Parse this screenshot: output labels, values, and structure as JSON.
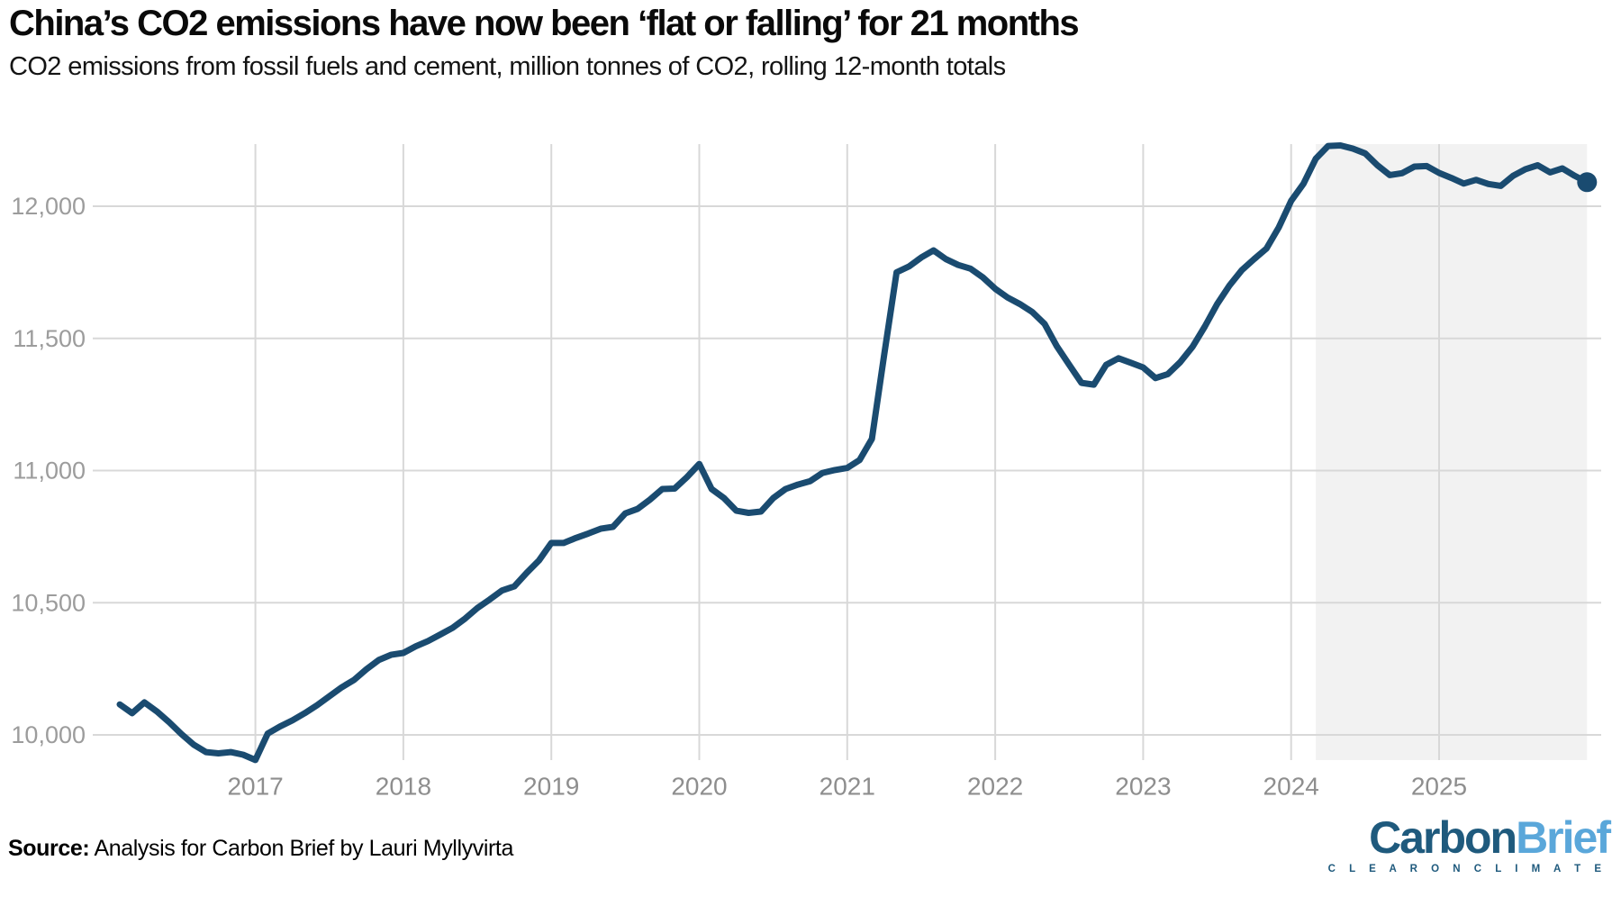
{
  "page": {
    "title": "China’s CO2 emissions have now been ‘flat or falling’ for 21 months",
    "subtitle": "CO2 emissions from fossil fuels and cement, million tonnes of CO2, rolling 12-month totals"
  },
  "source": {
    "label": "Source:",
    "text": " Analysis for Carbon Brief by Lauri Myllyvirta"
  },
  "logo": {
    "carbon": "Carbon",
    "brief": "Brief",
    "tagline": "C L E A R   O N   C L I M A T E",
    "carbon_color": "#1f5a7d",
    "brief_color": "#5aa7da"
  },
  "chart_data": {
    "type": "line",
    "title": "China’s CO2 emissions have now been ‘flat or falling’ for 21 months",
    "ylabel": "million tonnes of CO2, rolling 12-month totals",
    "xlabel": "",
    "grid": true,
    "legend": "none",
    "x_tick_labels": [
      "2017",
      "2018",
      "2019",
      "2020",
      "2021",
      "2022",
      "2023",
      "2024",
      "2025"
    ],
    "y_ticks": [
      10000,
      10500,
      11000,
      11500,
      12000
    ],
    "y_tick_labels": [
      "10,000",
      "10,500",
      "11,000",
      "11,500",
      "12,000"
    ],
    "ylim": [
      9900,
      12235
    ],
    "start_month": "2016-01",
    "end_month": "2025-12",
    "line_color": "#1a4b70",
    "highlight_band": {
      "from": "2024-03",
      "to": "2025-12",
      "color": "#f2f2f2",
      "meaning": "period of flat or falling emissions (21 months)"
    },
    "end_dot_value": 12091,
    "series": [
      {
        "name": "CO2 emissions from fossil fuels and cement, rolling 12-month total",
        "values": [
          10115,
          10082,
          10123,
          10089,
          10048,
          10003,
          9963,
          9935,
          9930,
          9935,
          9925,
          9905,
          10005,
          10032,
          10055,
          10082,
          10112,
          10146,
          10180,
          10208,
          10248,
          10283,
          10303,
          10310,
          10335,
          10355,
          10380,
          10405,
          10440,
          10480,
          10512,
          10546,
          10562,
          10613,
          10660,
          10726,
          10726,
          10745,
          10762,
          10780,
          10787,
          10838,
          10855,
          10890,
          10930,
          10932,
          10975,
          11025,
          10930,
          10896,
          10848,
          10840,
          10845,
          10896,
          10930,
          10947,
          10960,
          10991,
          11002,
          11010,
          11040,
          11120,
          11440,
          11750,
          11772,
          11806,
          11833,
          11800,
          11778,
          11764,
          11731,
          11688,
          11655,
          11630,
          11600,
          11555,
          11470,
          11400,
          11332,
          11325,
          11400,
          11425,
          11408,
          11390,
          11350,
          11365,
          11410,
          11468,
          11545,
          11630,
          11700,
          11758,
          11800,
          11840,
          11920,
          12020,
          12085,
          12180,
          12228,
          12230,
          12218,
          12200,
          12155,
          12118,
          12125,
          12150,
          12152,
          12126,
          12107,
          12086,
          12100,
          12084,
          12077,
          12115,
          12140,
          12155,
          12128,
          12143,
          12115,
          12091
        ]
      }
    ]
  }
}
